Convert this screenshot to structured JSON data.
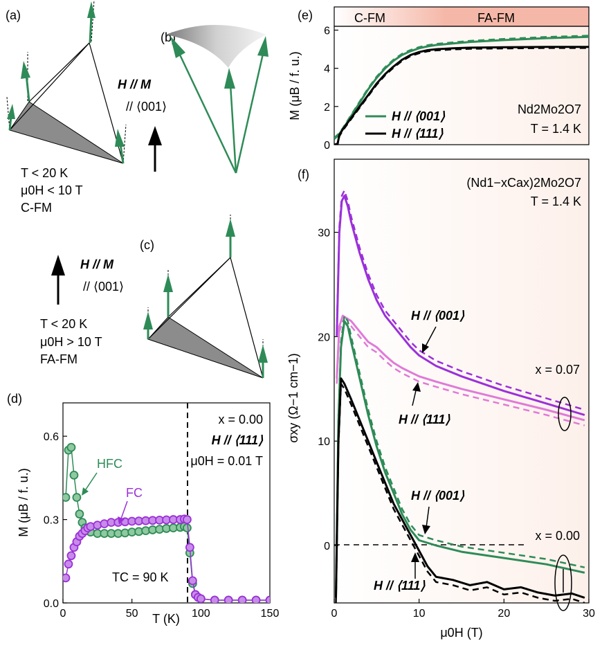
{
  "colors": {
    "green": "#2e8b57",
    "purple": "#9b30d9",
    "pink": "#e07ad8",
    "black": "#000000",
    "cfm_band": "#ffffff",
    "fafm_band": "#f5b8a8",
    "fafm_bg": "#fdf0ea",
    "hfc_fill": "#8fc9a0",
    "fc_fill": "#c88ce8"
  },
  "panels": {
    "a": {
      "label": "(a)",
      "cond1": "T < 20 K",
      "cond2": "μ0H < 10 T",
      "phase": "C-FM"
    },
    "b": {
      "label": "(b)",
      "field_line1": "H // M",
      "field_line2": "// ⟨001⟩"
    },
    "c": {
      "label": "(c)",
      "field_line1": "H // M",
      "field_line2": "// ⟨001⟩",
      "cond1": "T < 20 K",
      "cond2": "μ0H > 10 T",
      "phase": "FA-FM"
    },
    "d": {
      "label": "(d)",
      "ylabel": "M (μB / f. u.)",
      "xlabel": "T (K)",
      "x_ticks": [
        "0",
        "50",
        "100",
        "150"
      ],
      "y_ticks": [
        "0.0",
        "0.3",
        "0.6"
      ],
      "ann_x": "x = 0.00",
      "ann_field": "H // ⟨111⟩",
      "ann_mu": "μ0H = 0.01 T",
      "hfc_label": "HFC",
      "fc_label": "FC",
      "tc_label": "TC = 90 K"
    },
    "e": {
      "label": "(e)",
      "band_cfm": "C-FM",
      "band_fafm": "FA-FM",
      "ylabel": "M (μB / f. u.)",
      "y_ticks": [
        "0",
        "2",
        "4",
        "6"
      ],
      "legend_001": "H // ⟨001⟩",
      "legend_111": "H // ⟨111⟩",
      "compound": "Nd2Mo2O7",
      "temp": "T = 1.4 K"
    },
    "f": {
      "label": "(f)",
      "compound": "(Nd1−xCax)2Mo2O7",
      "temp": "T = 1.4 K",
      "ylabel": "σxy (Ω−1 cm−1)",
      "xlabel": "μ0H (T)",
      "x_ticks": [
        "0",
        "10",
        "20",
        "30"
      ],
      "y_ticks": [
        "0",
        "10",
        "20",
        "30"
      ],
      "ann_001_a": "H // ⟨001⟩",
      "ann_111_a": "H // ⟨111⟩",
      "ann_x007": "x = 0.07",
      "ann_001_b": "H // ⟨001⟩",
      "ann_111_b": "H // ⟨111⟩",
      "ann_x000": "x = 0.00"
    }
  },
  "chart_data": [
    {
      "panel": "d",
      "type": "scatter",
      "xlim": [
        0,
        150
      ],
      "ylim": [
        0,
        0.72
      ],
      "xlabel": "T (K)",
      "ylabel": "M (μB / f. u.)",
      "series": [
        {
          "name": "HFC",
          "color": "#2e8b57",
          "x": [
            2,
            4,
            6,
            8,
            10,
            12,
            14,
            16,
            18,
            20,
            25,
            30,
            35,
            40,
            45,
            50,
            55,
            60,
            65,
            70,
            75,
            80,
            85,
            88,
            90,
            92,
            94,
            96,
            98,
            100,
            110,
            120,
            130,
            140,
            150
          ],
          "y": [
            0.38,
            0.55,
            0.56,
            0.46,
            0.38,
            0.32,
            0.29,
            0.27,
            0.26,
            0.255,
            0.25,
            0.25,
            0.25,
            0.25,
            0.252,
            0.255,
            0.257,
            0.26,
            0.263,
            0.265,
            0.268,
            0.27,
            0.272,
            0.275,
            0.27,
            0.18,
            0.07,
            0.03,
            0.02,
            0.015,
            0.01,
            0.01,
            0.01,
            0.01,
            0.01
          ]
        },
        {
          "name": "FC",
          "color": "#9b30d9",
          "x": [
            2,
            4,
            6,
            8,
            10,
            12,
            14,
            16,
            18,
            20,
            25,
            30,
            35,
            40,
            45,
            50,
            55,
            60,
            65,
            70,
            75,
            80,
            85,
            88,
            90,
            92,
            94,
            96,
            98,
            100,
            110,
            120,
            130,
            140,
            150
          ],
          "y": [
            0.09,
            0.14,
            0.17,
            0.2,
            0.22,
            0.24,
            0.25,
            0.26,
            0.27,
            0.275,
            0.28,
            0.285,
            0.29,
            0.29,
            0.292,
            0.294,
            0.295,
            0.296,
            0.297,
            0.298,
            0.299,
            0.3,
            0.3,
            0.302,
            0.3,
            0.2,
            0.08,
            0.03,
            0.02,
            0.015,
            0.01,
            0.01,
            0.01,
            0.01,
            0.01
          ]
        }
      ]
    },
    {
      "panel": "e",
      "type": "line",
      "xlim": [
        0,
        30
      ],
      "ylim": [
        0,
        6.2
      ],
      "ylabel": "M (μB / f. u.)",
      "series": [
        {
          "name": "H // ⟨001⟩",
          "color": "#2e8b57",
          "x": [
            0,
            0.5,
            1,
            2,
            3,
            4,
            5,
            6,
            7,
            8,
            9,
            10,
            11,
            12,
            14,
            16,
            20,
            25,
            30
          ],
          "y": [
            0.3,
            0.5,
            0.8,
            1.5,
            2.2,
            2.9,
            3.5,
            4.0,
            4.4,
            4.7,
            4.9,
            5.05,
            5.15,
            5.22,
            5.3,
            5.38,
            5.48,
            5.58,
            5.65
          ]
        },
        {
          "name": "H // ⟨111⟩",
          "color": "#000000",
          "x": [
            0,
            0.4,
            0.6,
            1,
            2,
            3,
            4,
            5,
            6,
            7,
            8,
            9,
            10,
            11,
            12,
            14,
            16,
            20,
            25,
            30
          ],
          "y": [
            0,
            0.05,
            0.5,
            0.8,
            1.4,
            2.0,
            2.6,
            3.2,
            3.7,
            4.1,
            4.45,
            4.7,
            4.85,
            4.95,
            5.0,
            5.05,
            5.08,
            5.1,
            5.12,
            5.12
          ]
        }
      ]
    },
    {
      "panel": "f",
      "type": "line",
      "xlim": [
        0,
        30
      ],
      "ylim": [
        -5.5,
        37
      ],
      "xlabel": "μ0H (T)",
      "ylabel": "σxy (Ω−1 cm−1)",
      "series": [
        {
          "name": "x = 0.07, H // ⟨001⟩",
          "color": "#9b30d9",
          "x": [
            0.3,
            0.6,
            0.9,
            1.2,
            1.6,
            2,
            3,
            4,
            5,
            6,
            7,
            8,
            9,
            10,
            12,
            15,
            20,
            25,
            29.5
          ],
          "y": [
            20,
            30,
            33,
            33.5,
            32.5,
            31,
            28,
            25.5,
            23.5,
            22,
            21,
            20,
            19,
            18.2,
            17.2,
            16.2,
            14.8,
            13.6,
            12.5
          ]
        },
        {
          "name": "x = 0.07, H // ⟨111⟩",
          "color": "#e07ad8",
          "x": [
            0.3,
            0.6,
            1,
            2,
            3,
            4,
            5,
            6,
            7,
            8,
            9,
            10,
            12,
            15,
            20,
            25,
            29.5
          ],
          "y": [
            16,
            21,
            22,
            21.5,
            20.5,
            19.5,
            19,
            18.2,
            17.5,
            17,
            16.6,
            16.2,
            15.7,
            15,
            14,
            13,
            12
          ]
        },
        {
          "name": "x = 0.00, H // ⟨001⟩",
          "color": "#2e8b57",
          "x": [
            0.2,
            0.5,
            0.8,
            1.2,
            1.6,
            2,
            3,
            4,
            5,
            6,
            7,
            8,
            9,
            10,
            12,
            15,
            20,
            25,
            29.5
          ],
          "y": [
            -5,
            12,
            19,
            21.5,
            21,
            19.5,
            16,
            12.5,
            9.5,
            7,
            5,
            3,
            1.5,
            0.5,
            0,
            -0.6,
            -1.2,
            -1.8,
            -2.6
          ]
        },
        {
          "name": "x = 0.00, H // ⟨111⟩",
          "color": "#000000",
          "x": [
            0.2,
            0.5,
            0.8,
            1.2,
            2,
            3,
            4,
            5,
            6,
            7,
            8,
            9,
            10,
            11,
            12,
            14,
            16,
            18,
            20,
            22,
            24,
            26,
            28,
            29.5
          ],
          "y": [
            -5,
            10,
            16,
            15.5,
            14,
            12,
            10,
            8,
            6,
            4,
            2.5,
            1,
            -0.5,
            -2,
            -3,
            -3.3,
            -3.8,
            -3.5,
            -4.2,
            -4.0,
            -4.5,
            -4.8,
            -4.6,
            -5
          ]
        }
      ]
    }
  ]
}
